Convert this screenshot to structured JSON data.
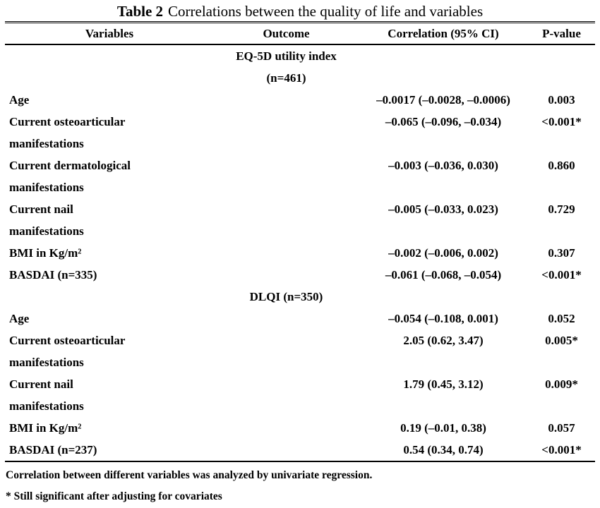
{
  "title": {
    "label": "Table 2",
    "text": "Correlations between the quality of life and variables"
  },
  "columns": [
    "Variables",
    "Outcome",
    "Correlation (95% CI)",
    "P-value"
  ],
  "sections": [
    {
      "header_lines": [
        "EQ-5D utility index",
        "(n=461)"
      ],
      "rows": [
        {
          "variable": "Age",
          "correlation": "–0.0017 (–0.0028, –0.0006)",
          "p": "0.003"
        },
        {
          "variable": "Current osteoarticular\nmanifestations",
          "correlation": "–0.065 (–0.096, –0.034)",
          "p": "<0.001*"
        },
        {
          "variable": "Current dermatological\nmanifestations",
          "correlation": "–0.003 (–0.036, 0.030)",
          "p": "0.860"
        },
        {
          "variable": "Current nail\nmanifestations",
          "correlation": "–0.005 (–0.033, 0.023)",
          "p": "0.729"
        },
        {
          "variable": "BMI in Kg/m²",
          "correlation": "–0.002 (–0.006, 0.002)",
          "p": "0.307"
        },
        {
          "variable": "BASDAI (n=335)",
          "correlation": "–0.061 (–0.068, –0.054)",
          "p": "<0.001*"
        }
      ]
    },
    {
      "header_lines": [
        "DLQI (n=350)"
      ],
      "rows": [
        {
          "variable": "Age",
          "correlation": "–0.054 (–0.108, 0.001)",
          "p": "0.052"
        },
        {
          "variable": "Current osteoarticular\nmanifestations",
          "correlation": "2.05 (0.62, 3.47)",
          "p": "0.005*"
        },
        {
          "variable": "Current nail\nmanifestations",
          "correlation": "1.79 (0.45, 3.12)",
          "p": "0.009*"
        },
        {
          "variable": "BMI in Kg/m²",
          "correlation": "0.19 (–0.01, 0.38)",
          "p": "0.057"
        },
        {
          "variable": "BASDAI (n=237)",
          "correlation": "0.54 (0.34, 0.74)",
          "p": "<0.001*"
        }
      ]
    }
  ],
  "footnotes": [
    "Correlation between different variables was analyzed by univariate regression.",
    "* Still significant after adjusting for covariates"
  ],
  "colors": {
    "text": "#000000",
    "background": "#ffffff",
    "rule": "#000000"
  }
}
